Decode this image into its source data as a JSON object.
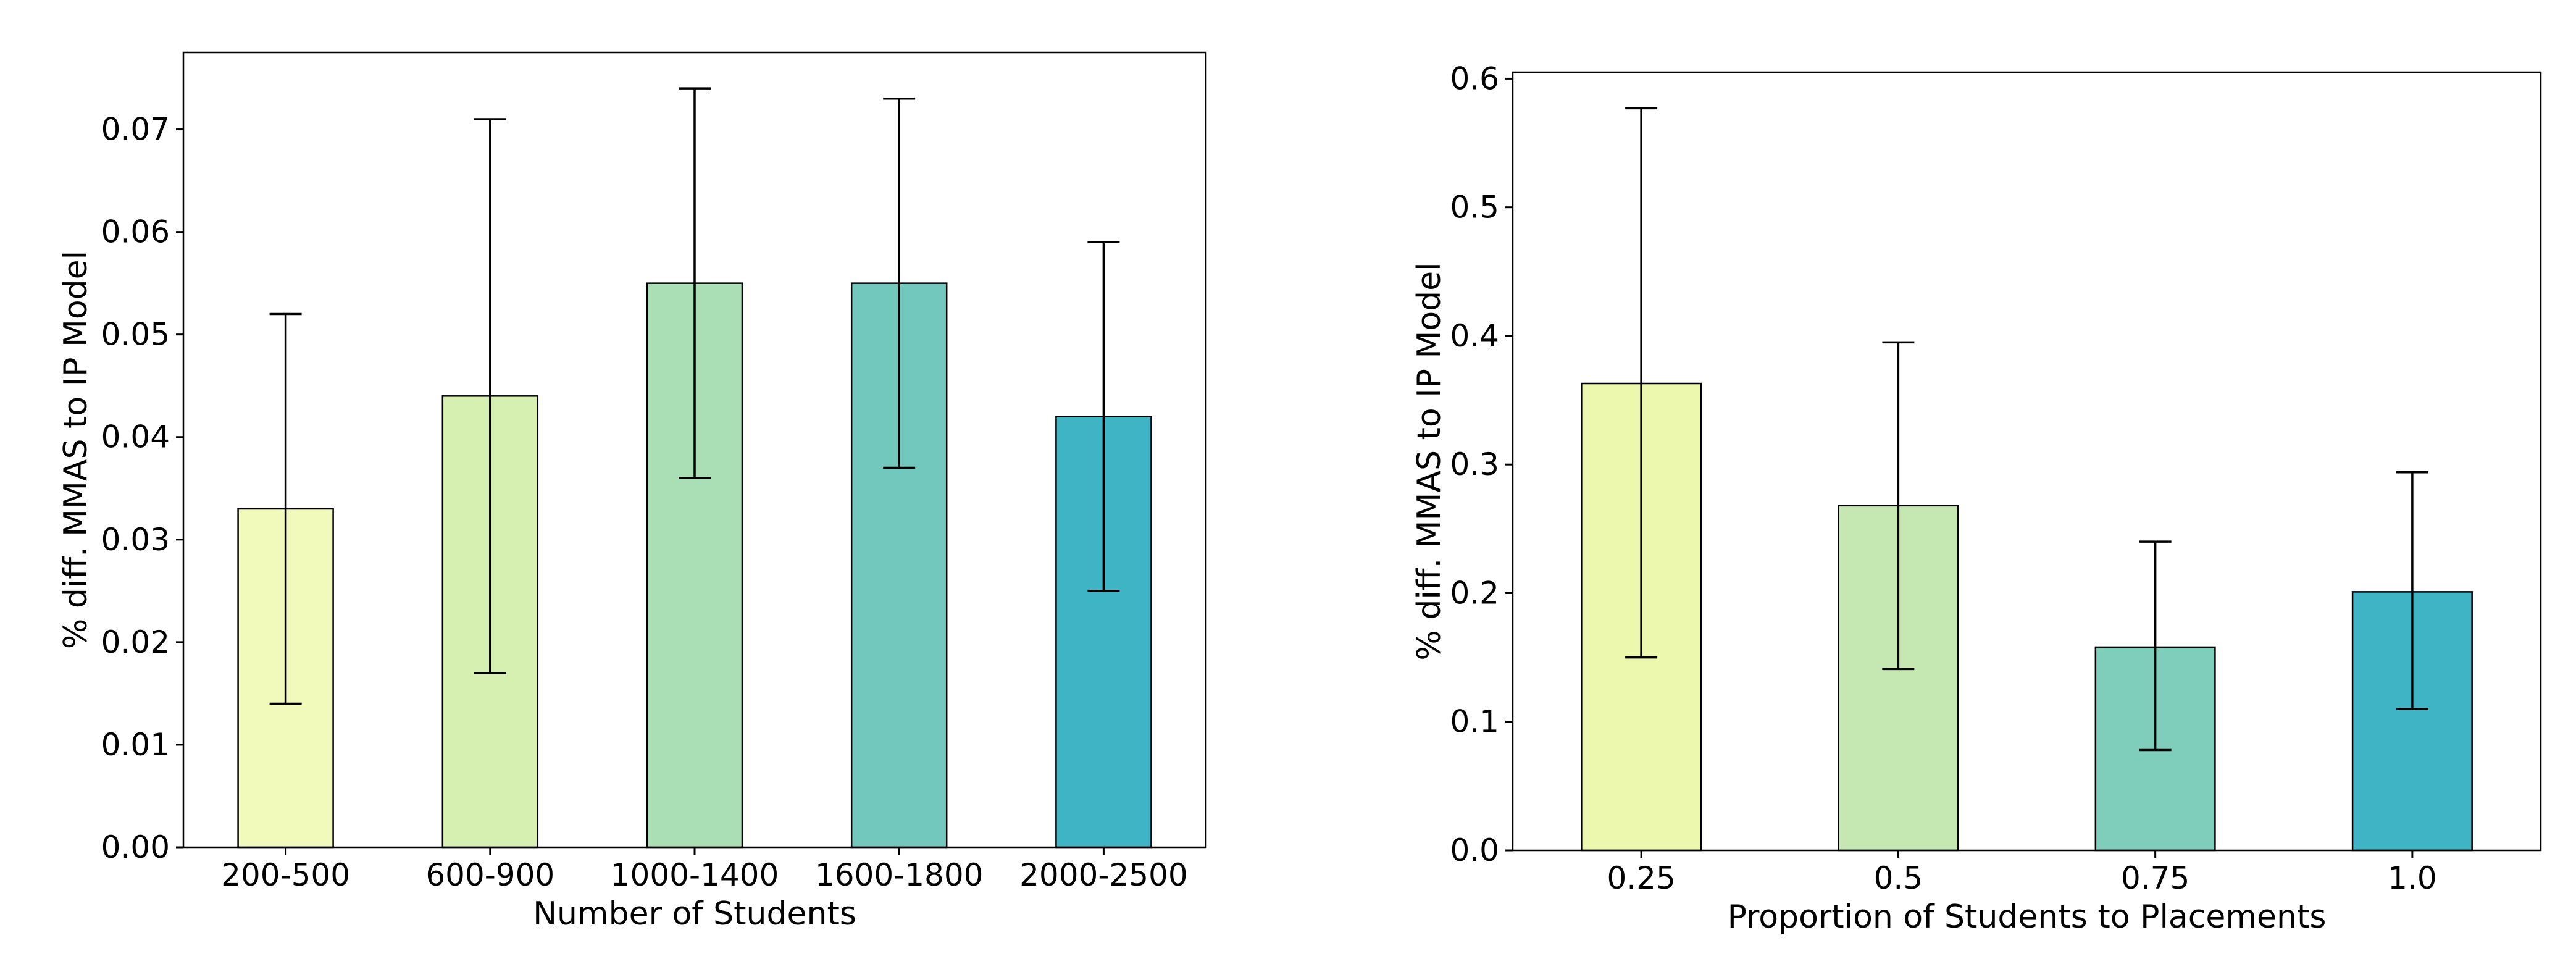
{
  "chart_data": [
    {
      "type": "bar",
      "title": "",
      "xlabel": "Number of Students",
      "ylabel": "% diff. MMAS to IP Model",
      "categories": [
        "200-500",
        "600-900",
        "1000-1400",
        "1600-1800",
        "2000-2500"
      ],
      "values": [
        0.033,
        0.044,
        0.055,
        0.055,
        0.042
      ],
      "error_low": [
        0.014,
        0.017,
        0.036,
        0.037,
        0.025
      ],
      "error_high": [
        0.052,
        0.071,
        0.074,
        0.073,
        0.059
      ],
      "colors": [
        "#f1f9bb",
        "#d6f0b2",
        "#aadeb5",
        "#73c8be",
        "#3fb4c5"
      ],
      "ylim": [
        0,
        0.0775
      ],
      "yticks": [
        0.0,
        0.01,
        0.02,
        0.03,
        0.04,
        0.05,
        0.06,
        0.07
      ],
      "ytick_labels": [
        "0.00",
        "0.01",
        "0.02",
        "0.03",
        "0.04",
        "0.05",
        "0.06",
        "0.07"
      ],
      "grid": false
    },
    {
      "type": "bar",
      "title": "",
      "xlabel": "Proportion of Students to Placements",
      "ylabel": "% diff. MMAS to IP Model",
      "categories": [
        "0.25",
        "0.5",
        "0.75",
        "1.0"
      ],
      "values": [
        0.363,
        0.268,
        0.158,
        0.201
      ],
      "error_low": [
        0.15,
        0.141,
        0.078,
        0.11
      ],
      "error_high": [
        0.577,
        0.395,
        0.24,
        0.294
      ],
      "colors": [
        "#ecf8ae",
        "#c5e8b2",
        "#7fcdbb",
        "#3fb4c5"
      ],
      "ylim": [
        0,
        0.605
      ],
      "yticks": [
        0.0,
        0.1,
        0.2,
        0.3,
        0.4,
        0.5,
        0.6
      ],
      "ytick_labels": [
        "0.0",
        "0.1",
        "0.2",
        "0.3",
        "0.4",
        "0.5",
        "0.6"
      ],
      "grid": false
    }
  ]
}
